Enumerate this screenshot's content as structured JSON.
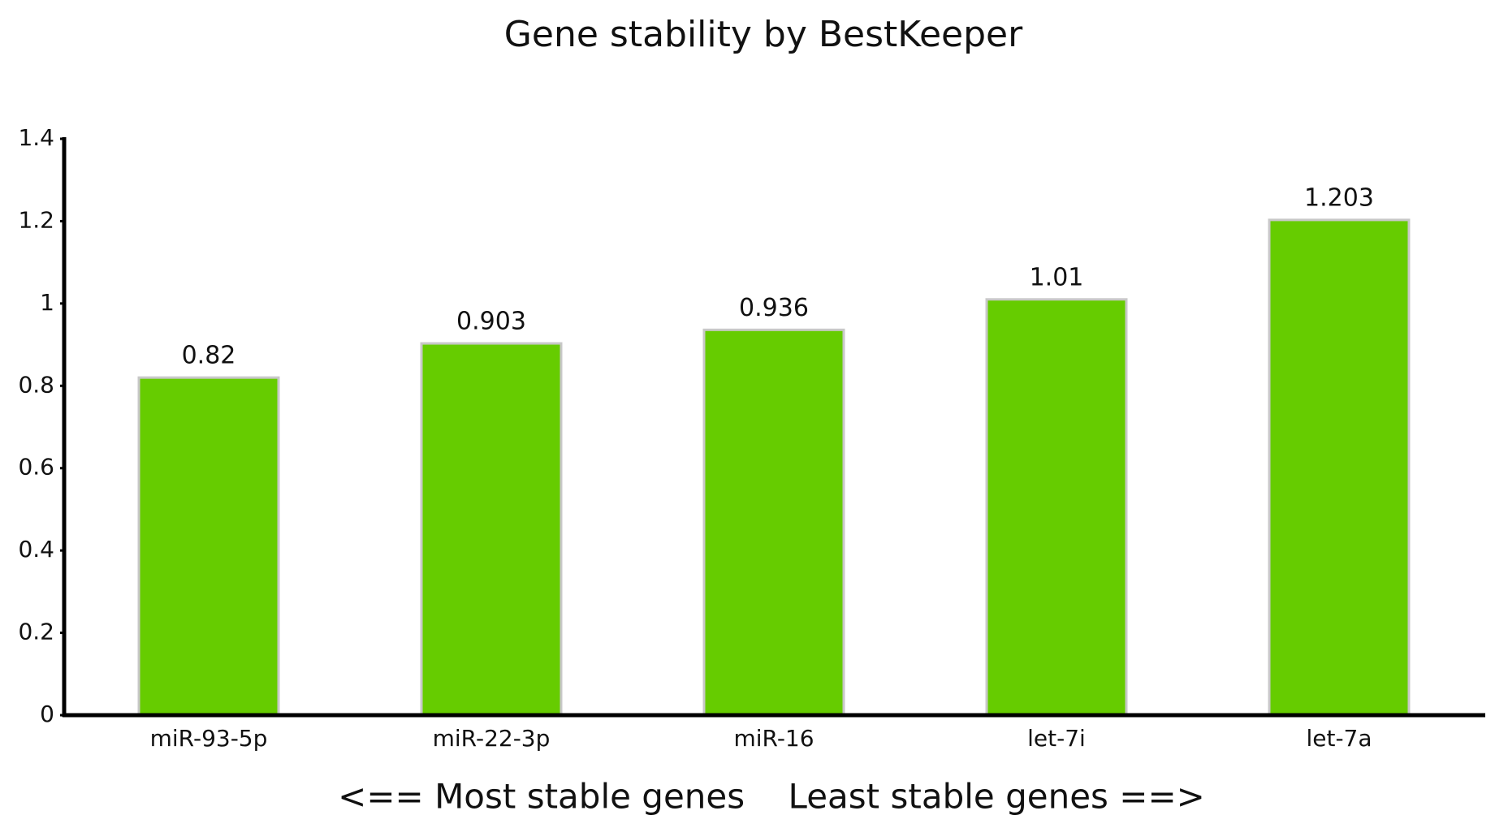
{
  "chart_data": {
    "type": "bar",
    "title": "Gene stability by BestKeeper",
    "xlabel": "<== Most stable genes    Least stable genes ==>",
    "categories": [
      "miR-93-5p",
      "miR-22-3p",
      "miR-16",
      "let-7i",
      "let-7a"
    ],
    "values": [
      0.82,
      0.903,
      0.936,
      1.01,
      1.203
    ],
    "color": "#66cc00",
    "ylim": [
      0,
      1.4
    ],
    "yticks": [
      0,
      0.2,
      0.4,
      0.6,
      0.8,
      1,
      1.2,
      1.4
    ],
    "grid": false
  }
}
